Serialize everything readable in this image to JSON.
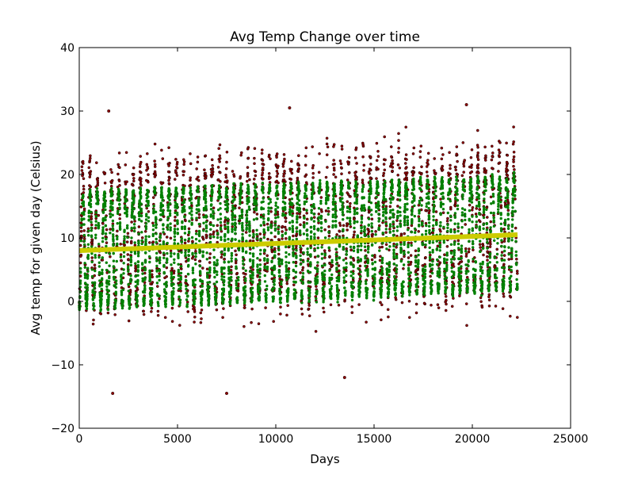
{
  "chart_data": {
    "type": "scatter",
    "title": "Avg Temp Change over time",
    "xlabel": "Days",
    "ylabel": "Avg temp for given day (Celsius)",
    "xlim": [
      0,
      25000
    ],
    "ylim": [
      -20,
      40
    ],
    "xticks": [
      0,
      5000,
      10000,
      15000,
      20000,
      25000
    ],
    "yticks": [
      -20,
      -10,
      0,
      10,
      20,
      30,
      40
    ],
    "xtick_labels": [
      "0",
      "5000",
      "10000",
      "15000",
      "20000",
      "25000"
    ],
    "ytick_labels": [
      "−20",
      "−10",
      "0",
      "10",
      "20",
      "30",
      "40"
    ],
    "grid": false,
    "legend": "none",
    "series": [
      {
        "kind": "raw_daily_scatter",
        "color": "#8b0000",
        "x_range": [
          0,
          22300
        ],
        "seasonal_cycles": 61,
        "typical_low": 0,
        "typical_high": 20,
        "extremes": [
          {
            "x": 1700,
            "y": -14.5
          },
          {
            "x": 7500,
            "y": -14.5
          },
          {
            "x": 13500,
            "y": -12
          },
          {
            "x": 1500,
            "y": 30
          },
          {
            "x": 10700,
            "y": 30.5
          },
          {
            "x": 19700,
            "y": 31
          }
        ]
      },
      {
        "kind": "smoothed_scatter",
        "color": "#008000",
        "x_range": [
          0,
          22300
        ],
        "seasonal_cycles": 61,
        "low_start": -1,
        "low_end": 2,
        "high_start": 17,
        "high_end": 19.5
      },
      {
        "kind": "trend_line",
        "color": "#cccc00",
        "x": [
          0,
          22300
        ],
        "y": [
          8.0,
          10.5
        ]
      }
    ]
  }
}
